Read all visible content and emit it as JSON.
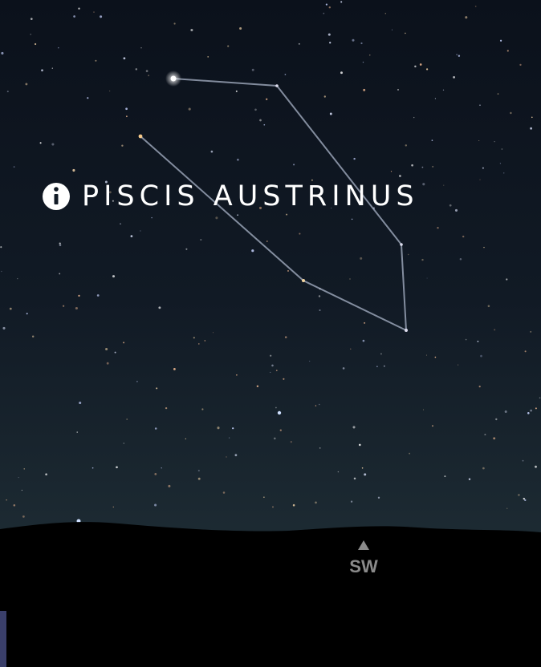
{
  "constellation": {
    "name": "PISCIS AUSTRINUS"
  },
  "compass": {
    "direction": "SW"
  }
}
